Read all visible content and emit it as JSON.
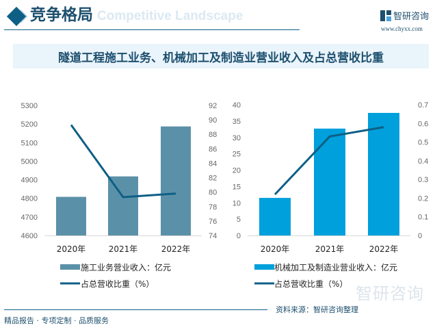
{
  "header": {
    "title": "竞争格局",
    "subtitle": "Competitive Landscape",
    "brand": "智研咨询",
    "url": "www.chyxx.com"
  },
  "chart_title": "隧道工程施工业务、机械加工及制造业营业收入及占总营收比重",
  "colors": {
    "bar_left": "#5b91a8",
    "bar_right": "#00a0dc",
    "line": "#0e5f86"
  },
  "chart_data": [
    {
      "type": "bar+line",
      "categories": [
        "2020年",
        "2021年",
        "2022年"
      ],
      "series": [
        {
          "name": "施工业务营业收入：亿元",
          "type": "bar",
          "axis": "left",
          "values": [
            4808,
            4918,
            5187
          ]
        },
        {
          "name": "占总营收比重（%）",
          "type": "line",
          "axis": "right",
          "values": [
            89.3,
            79.3,
            79.8
          ]
        }
      ],
      "ylim_left": [
        4600,
        5300
      ],
      "yticks_left": [
        4600,
        4700,
        4800,
        4900,
        5000,
        5100,
        5200,
        5300
      ],
      "ylim_right": [
        74,
        92
      ],
      "yticks_right": [
        74,
        76,
        78,
        80,
        82,
        84,
        86,
        88,
        90,
        92
      ],
      "legend": "bottom"
    },
    {
      "type": "bar+line",
      "categories": [
        "2020年",
        "2021年",
        "2022年"
      ],
      "series": [
        {
          "name": "机械加工及制造业营业收入：亿元",
          "type": "bar",
          "axis": "left",
          "values": [
            11.5,
            32.7,
            37.5
          ]
        },
        {
          "name": "占总营收比重（%）",
          "type": "line",
          "axis": "right",
          "values": [
            0.22,
            0.53,
            0.58
          ]
        }
      ],
      "ylim_left": [
        0,
        40
      ],
      "yticks_left": [
        0,
        5,
        10,
        15,
        20,
        25,
        30,
        35,
        40
      ],
      "ylim_right": [
        0,
        0.7
      ],
      "yticks_right": [
        0,
        0.1,
        0.2,
        0.3,
        0.4,
        0.5,
        0.6,
        0.7
      ],
      "legend": "bottom"
    }
  ],
  "footer": {
    "tagline": "精品报告 · 专项定制 · 品质服务",
    "source": "资料来源：智研咨询整理",
    "brand": "智研咨询"
  }
}
